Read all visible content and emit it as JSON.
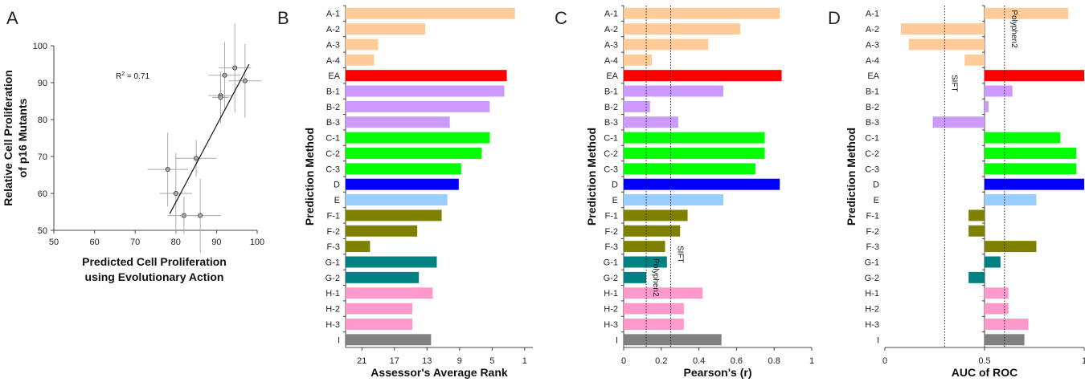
{
  "chart_data": [
    {
      "panel": "A",
      "type": "scatter",
      "xlabel": [
        "Predicted Cell Proliferation",
        "using Evolutionary Action"
      ],
      "ylabel": [
        "Relative Cell Proliferation",
        "of p16 Mutants"
      ],
      "xlim": [
        50,
        100
      ],
      "ylim": [
        50,
        100
      ],
      "xticks": [
        50,
        60,
        70,
        80,
        90,
        100
      ],
      "yticks": [
        50,
        60,
        70,
        80,
        90,
        100
      ],
      "annotation_base": "R",
      "annotation_sup": "2",
      "annotation_value": " = 0.71",
      "fit_line": [
        [
          78.5,
          54.5
        ],
        [
          98,
          95
        ]
      ],
      "points": [
        {
          "x": 78,
          "y": 66.5,
          "xerr": 5,
          "yerr": 10
        },
        {
          "x": 80,
          "y": 60,
          "xerr": 4,
          "yerr": 11
        },
        {
          "x": 82,
          "y": 54,
          "xerr": 4,
          "yerr": 5
        },
        {
          "x": 85,
          "y": 69.5,
          "xerr": 5,
          "yerr": 5
        },
        {
          "x": 86,
          "y": 54,
          "xerr": 5,
          "yerr": 10
        },
        {
          "x": 91,
          "y": 86.5,
          "xerr": 3,
          "yerr": 6
        },
        {
          "x": 91,
          "y": 86,
          "xerr": 2,
          "yerr": 7
        },
        {
          "x": 92,
          "y": 92,
          "xerr": 4,
          "yerr": 9
        },
        {
          "x": 94.5,
          "y": 94,
          "xerr": 4,
          "yerr": 12
        },
        {
          "x": 97,
          "y": 90.5,
          "xerr": 4,
          "yerr": 10
        }
      ]
    },
    {
      "panel": "B",
      "type": "bar",
      "orientation": "horizontal",
      "xlabel": "Assessor's Average Rank",
      "ylabel": "Prediction Method",
      "xlim": [
        23,
        0
      ],
      "xticks": [
        21,
        17,
        13,
        9,
        5,
        1
      ],
      "categories": [
        "A-1",
        "A-2",
        "A-3",
        "A-4",
        "EA",
        "B-1",
        "B-2",
        "B-3",
        "C-1",
        "C-2",
        "C-3",
        "D",
        "E",
        "F-1",
        "F-2",
        "F-3",
        "G-1",
        "G-2",
        "H-1",
        "H-2",
        "H-3",
        "I"
      ],
      "values": [
        2.2,
        13.2,
        19,
        19.5,
        3.2,
        3.5,
        5.3,
        10.2,
        5.3,
        6.3,
        8.8,
        9.1,
        10.5,
        11.2,
        14.2,
        20,
        11.8,
        14,
        12.3,
        14.8,
        14.8,
        12.5
      ],
      "colors": [
        "#ffcc99",
        "#ffcc99",
        "#ffcc99",
        "#ffcc99",
        "#ff0000",
        "#cc99ff",
        "#cc99ff",
        "#cc99ff",
        "#00ff00",
        "#00ff00",
        "#00ff00",
        "#0000ff",
        "#99ccff",
        "#808000",
        "#808000",
        "#808000",
        "#008080",
        "#008080",
        "#ff99cc",
        "#ff99cc",
        "#ff99cc",
        "#808080"
      ]
    },
    {
      "panel": "C",
      "type": "bar",
      "orientation": "horizontal",
      "xlabel": "Pearson's (r)",
      "ylabel": "Prediction Method",
      "xlim": [
        0,
        1
      ],
      "xticks": [
        0,
        0.2,
        0.4,
        0.6,
        0.8,
        1
      ],
      "categories": [
        "A-1",
        "A-2",
        "A-3",
        "A-4",
        "EA",
        "B-1",
        "B-2",
        "B-3",
        "C-1",
        "C-2",
        "C-3",
        "D",
        "E",
        "F-1",
        "F-2",
        "F-3",
        "G-1",
        "G-2",
        "H-1",
        "H-2",
        "H-3",
        "I"
      ],
      "values": [
        0.83,
        0.62,
        0.45,
        0.15,
        0.84,
        0.53,
        0.14,
        0.29,
        0.75,
        0.75,
        0.7,
        0.83,
        0.53,
        0.34,
        0.3,
        0.22,
        0.23,
        0.12,
        0.42,
        0.32,
        0.32,
        0.52
      ],
      "colors": [
        "#ffcc99",
        "#ffcc99",
        "#ffcc99",
        "#ffcc99",
        "#ff0000",
        "#cc99ff",
        "#cc99ff",
        "#cc99ff",
        "#00ff00",
        "#00ff00",
        "#00ff00",
        "#0000ff",
        "#99ccff",
        "#808000",
        "#808000",
        "#808000",
        "#008080",
        "#008080",
        "#ff99cc",
        "#ff99cc",
        "#ff99cc",
        "#808080"
      ],
      "reference_lines": [
        {
          "label": "Polyphen2",
          "x": 0.12,
          "label_row": 17.5
        },
        {
          "label": "SIFT",
          "x": 0.25,
          "label_row": 16
        }
      ]
    },
    {
      "panel": "D",
      "type": "bar",
      "orientation": "horizontal",
      "xlabel": "AUC of ROC",
      "ylabel": "Prediction Method",
      "xlim": [
        0,
        1
      ],
      "baseline": 0.5,
      "xticks": [
        0,
        0.5,
        1
      ],
      "categories": [
        "A-1",
        "A-2",
        "A-3",
        "A-4",
        "EA",
        "B-1",
        "B-2",
        "B-3",
        "C-1",
        "C-2",
        "C-3",
        "D",
        "E",
        "F-1",
        "F-2",
        "F-3",
        "G-1",
        "G-2",
        "H-1",
        "H-2",
        "H-3",
        "I"
      ],
      "values": [
        0.92,
        0.08,
        0.12,
        0.4,
        1.0,
        0.64,
        0.52,
        0.24,
        0.88,
        0.96,
        0.96,
        1.0,
        0.76,
        0.42,
        0.42,
        0.76,
        0.58,
        0.42,
        0.62,
        0.62,
        0.72,
        0.7
      ],
      "colors": [
        "#ffcc99",
        "#ffcc99",
        "#ffcc99",
        "#ffcc99",
        "#ff0000",
        "#cc99ff",
        "#cc99ff",
        "#cc99ff",
        "#00ff00",
        "#00ff00",
        "#00ff00",
        "#0000ff",
        "#99ccff",
        "#808000",
        "#808000",
        "#808000",
        "#008080",
        "#008080",
        "#ff99cc",
        "#ff99cc",
        "#ff99cc",
        "#808080"
      ],
      "reference_lines": [
        {
          "label": "SIFT",
          "x": 0.3,
          "label_row": 5
        },
        {
          "label": "Polyphen2",
          "x": 0.6,
          "label_row": 1.5
        }
      ]
    }
  ]
}
